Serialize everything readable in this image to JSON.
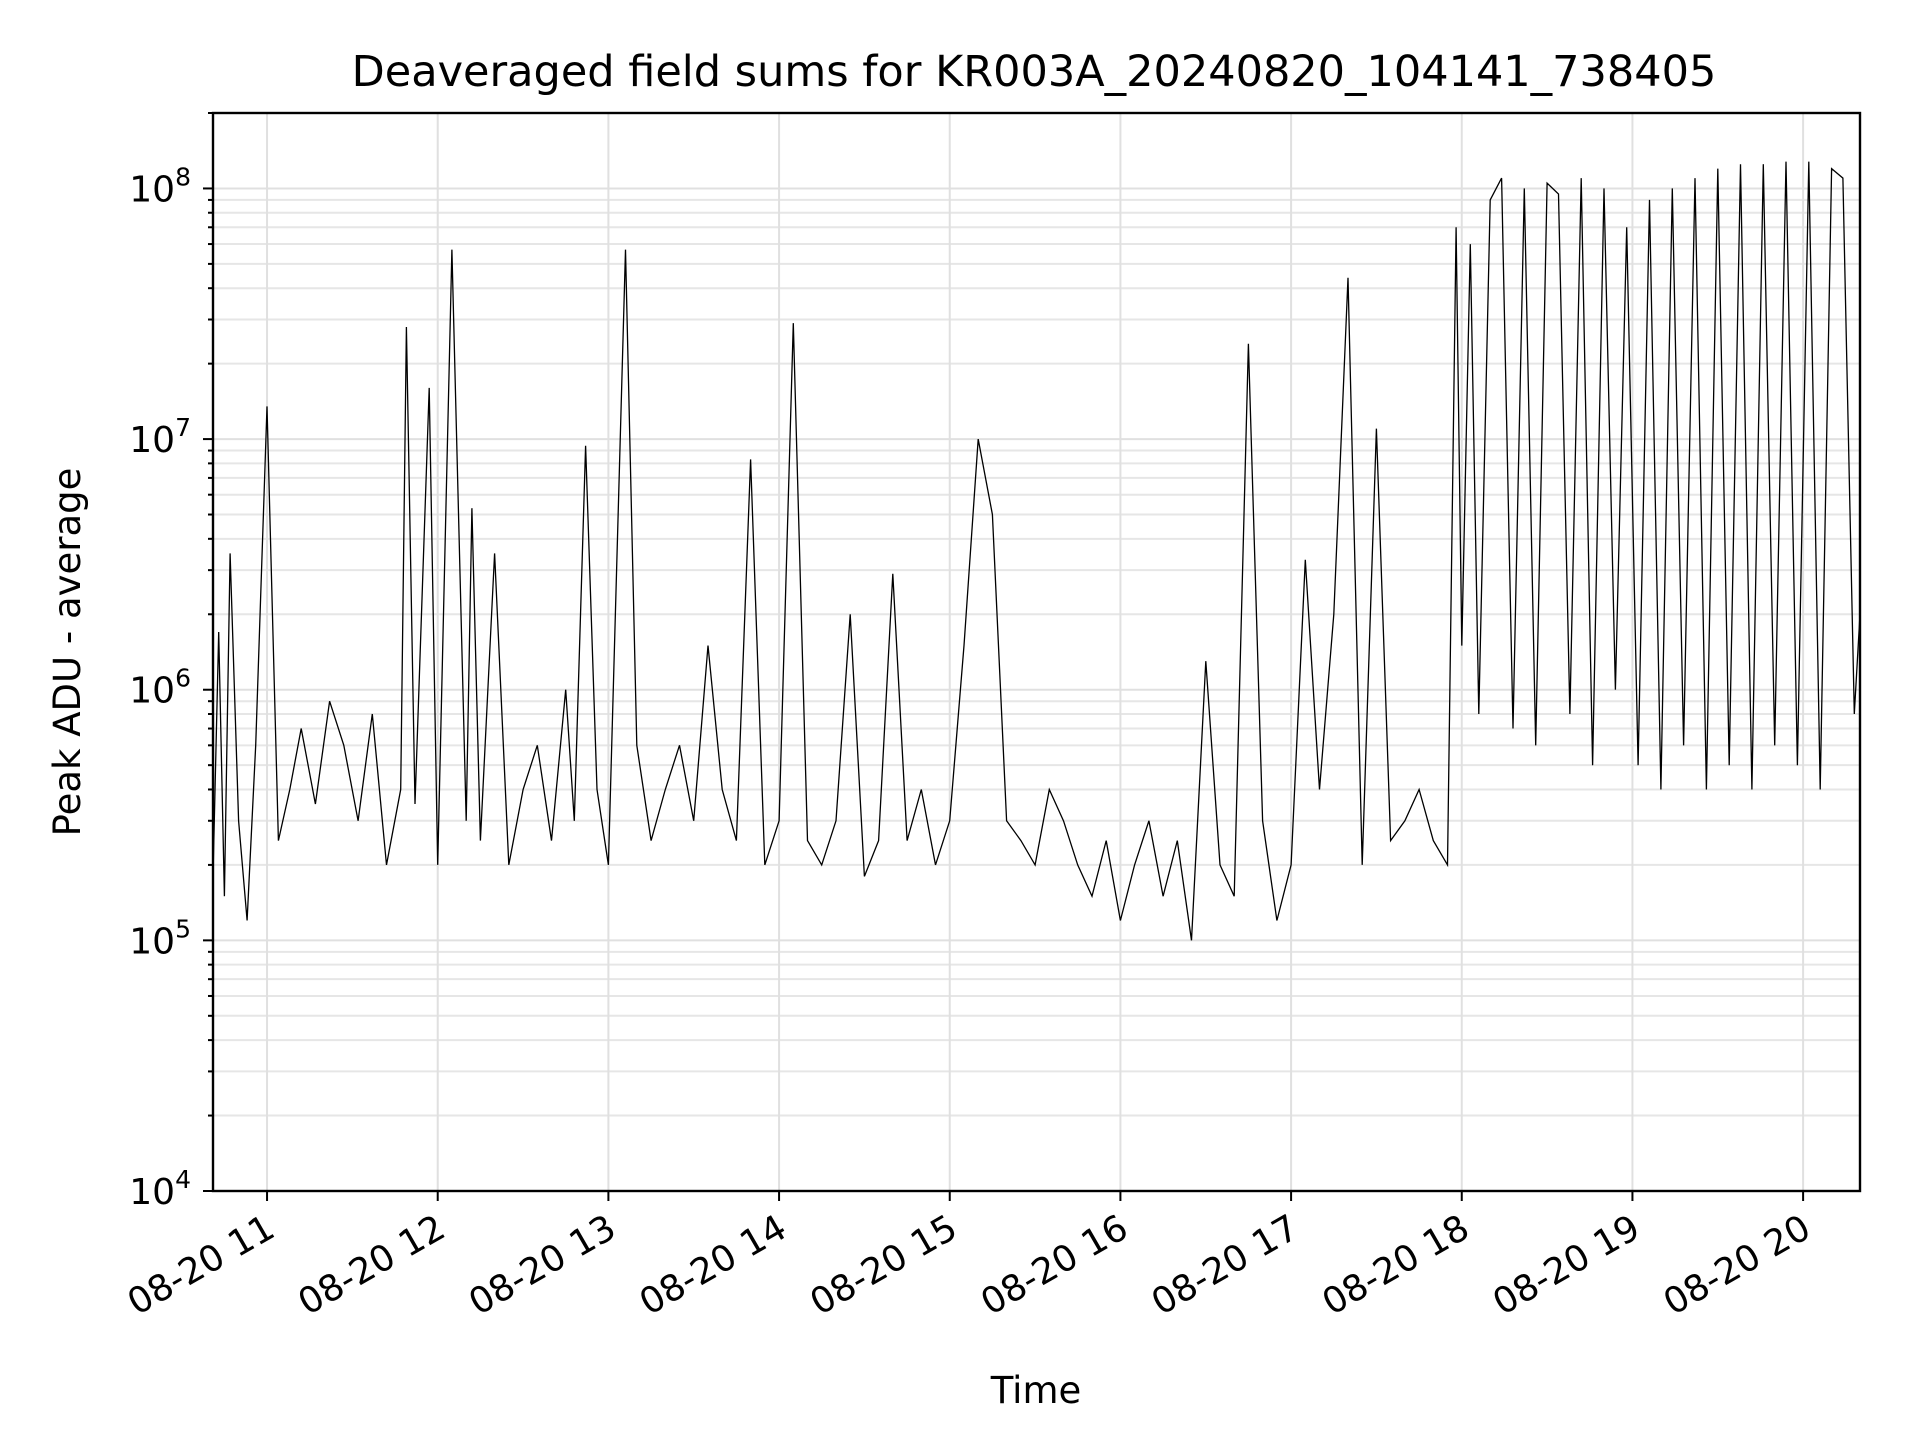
{
  "chart_data": {
    "type": "line",
    "title": "Deaveraged field sums for KR003A_20240820_104141_738405",
    "xlabel": "Time",
    "ylabel": "Peak ADU - average",
    "yscale": "log",
    "ylim": [
      10000,
      200000000
    ],
    "y_ticks": [
      {
        "value": 10000,
        "base": "10",
        "exp": "4"
      },
      {
        "value": 100000,
        "base": "10",
        "exp": "5"
      },
      {
        "value": 1000000,
        "base": "10",
        "exp": "6"
      },
      {
        "value": 10000000,
        "base": "10",
        "exp": "7"
      },
      {
        "value": 100000000,
        "base": "10",
        "exp": "8"
      }
    ],
    "xlim": [
      "2024-08-20 10:41",
      "2024-08-20 20:20"
    ],
    "x_ticks": [
      {
        "label": "08-20 11",
        "time": "2024-08-20 11:00"
      },
      {
        "label": "08-20 12",
        "time": "2024-08-20 12:00"
      },
      {
        "label": "08-20 13",
        "time": "2024-08-20 13:00"
      },
      {
        "label": "08-20 14",
        "time": "2024-08-20 14:00"
      },
      {
        "label": "08-20 15",
        "time": "2024-08-20 15:00"
      },
      {
        "label": "08-20 16",
        "time": "2024-08-20 16:00"
      },
      {
        "label": "08-20 17",
        "time": "2024-08-20 17:00"
      },
      {
        "label": "08-20 18",
        "time": "2024-08-20 18:00"
      },
      {
        "label": "08-20 19",
        "time": "2024-08-20 19:00"
      },
      {
        "label": "08-20 20",
        "time": "2024-08-20 20:00"
      }
    ],
    "grid": true,
    "line_color": "#000000",
    "series": [
      {
        "x": [
          "2024-08-20 10:41",
          "2024-08-20 10:43",
          "2024-08-20 10:45",
          "2024-08-20 10:47",
          "2024-08-20 10:50",
          "2024-08-20 10:53",
          "2024-08-20 10:56",
          "2024-08-20 11:00",
          "2024-08-20 11:04",
          "2024-08-20 11:08",
          "2024-08-20 11:12",
          "2024-08-20 11:17",
          "2024-08-20 11:22",
          "2024-08-20 11:27",
          "2024-08-20 11:32",
          "2024-08-20 11:37",
          "2024-08-20 11:42",
          "2024-08-20 11:47",
          "2024-08-20 11:49",
          "2024-08-20 11:52",
          "2024-08-20 11:57",
          "2024-08-20 12:00",
          "2024-08-20 12:05",
          "2024-08-20 12:10",
          "2024-08-20 12:12",
          "2024-08-20 12:15",
          "2024-08-20 12:20",
          "2024-08-20 12:25",
          "2024-08-20 12:30",
          "2024-08-20 12:35",
          "2024-08-20 12:40",
          "2024-08-20 12:45",
          "2024-08-20 12:48",
          "2024-08-20 12:52",
          "2024-08-20 12:56",
          "2024-08-20 13:00",
          "2024-08-20 13:06",
          "2024-08-20 13:10",
          "2024-08-20 13:15",
          "2024-08-20 13:20",
          "2024-08-20 13:25",
          "2024-08-20 13:30",
          "2024-08-20 13:35",
          "2024-08-20 13:40",
          "2024-08-20 13:45",
          "2024-08-20 13:50",
          "2024-08-20 13:55",
          "2024-08-20 14:00",
          "2024-08-20 14:05",
          "2024-08-20 14:10",
          "2024-08-20 14:15",
          "2024-08-20 14:20",
          "2024-08-20 14:25",
          "2024-08-20 14:30",
          "2024-08-20 14:35",
          "2024-08-20 14:40",
          "2024-08-20 14:45",
          "2024-08-20 14:50",
          "2024-08-20 14:55",
          "2024-08-20 15:00",
          "2024-08-20 15:05",
          "2024-08-20 15:10",
          "2024-08-20 15:15",
          "2024-08-20 15:20",
          "2024-08-20 15:25",
          "2024-08-20 15:30",
          "2024-08-20 15:35",
          "2024-08-20 15:40",
          "2024-08-20 15:45",
          "2024-08-20 15:50",
          "2024-08-20 15:55",
          "2024-08-20 16:00",
          "2024-08-20 16:05",
          "2024-08-20 16:10",
          "2024-08-20 16:15",
          "2024-08-20 16:20",
          "2024-08-20 16:25",
          "2024-08-20 16:30",
          "2024-08-20 16:35",
          "2024-08-20 16:40",
          "2024-08-20 16:45",
          "2024-08-20 16:50",
          "2024-08-20 16:55",
          "2024-08-20 17:00",
          "2024-08-20 17:05",
          "2024-08-20 17:10",
          "2024-08-20 17:15",
          "2024-08-20 17:20",
          "2024-08-20 17:25",
          "2024-08-20 17:30",
          "2024-08-20 17:35",
          "2024-08-20 17:40",
          "2024-08-20 17:45",
          "2024-08-20 17:50",
          "2024-08-20 17:55",
          "2024-08-20 17:58",
          "2024-08-20 18:00",
          "2024-08-20 18:03",
          "2024-08-20 18:06",
          "2024-08-20 18:10",
          "2024-08-20 18:14",
          "2024-08-20 18:18",
          "2024-08-20 18:22",
          "2024-08-20 18:26",
          "2024-08-20 18:30",
          "2024-08-20 18:34",
          "2024-08-20 18:38",
          "2024-08-20 18:42",
          "2024-08-20 18:46",
          "2024-08-20 18:50",
          "2024-08-20 18:54",
          "2024-08-20 18:58",
          "2024-08-20 19:02",
          "2024-08-20 19:06",
          "2024-08-20 19:10",
          "2024-08-20 19:14",
          "2024-08-20 19:18",
          "2024-08-20 19:22",
          "2024-08-20 19:26",
          "2024-08-20 19:30",
          "2024-08-20 19:34",
          "2024-08-20 19:38",
          "2024-08-20 19:42",
          "2024-08-20 19:46",
          "2024-08-20 19:50",
          "2024-08-20 19:54",
          "2024-08-20 19:58",
          "2024-08-20 20:02",
          "2024-08-20 20:06",
          "2024-08-20 20:10",
          "2024-08-20 20:14",
          "2024-08-20 20:18",
          "2024-08-20 20:20"
        ],
        "y": [
          180000,
          1700000,
          150000,
          3500000,
          300000,
          120000,
          600000,
          13500000,
          250000,
          400000,
          700000,
          350000,
          900000,
          600000,
          300000,
          800000,
          200000,
          400000,
          28000000,
          350000,
          16000000,
          200000,
          57000000,
          300000,
          5300000,
          250000,
          3500000,
          200000,
          400000,
          600000,
          250000,
          1000000,
          300000,
          9400000,
          400000,
          200000,
          57000000,
          600000,
          250000,
          400000,
          600000,
          300000,
          1500000,
          400000,
          250000,
          8300000,
          200000,
          300000,
          29000000,
          250000,
          200000,
          300000,
          2000000,
          180000,
          250000,
          2900000,
          250000,
          400000,
          200000,
          300000,
          1500000,
          10000000,
          5000000,
          300000,
          250000,
          200000,
          400000,
          300000,
          200000,
          150000,
          250000,
          120000,
          200000,
          300000,
          150000,
          250000,
          100000,
          1300000,
          200000,
          150000,
          24000000,
          300000,
          120000,
          200000,
          3300000,
          400000,
          2000000,
          44000000,
          200000,
          11000000,
          250000,
          300000,
          400000,
          250000,
          200000,
          70000000,
          1500000,
          60000000,
          800000,
          90000000,
          110000000,
          700000,
          100000000,
          600000,
          105000000,
          95000000,
          800000,
          110000000,
          500000,
          100000000,
          1000000,
          70000000,
          500000,
          90000000,
          400000,
          100000000,
          600000,
          110000000,
          400000,
          120000000,
          500000,
          125000000,
          400000,
          125000000,
          600000,
          128000000,
          500000,
          128000000,
          400000,
          120000000,
          110000000,
          800000,
          2000000
        ]
      }
    ]
  }
}
